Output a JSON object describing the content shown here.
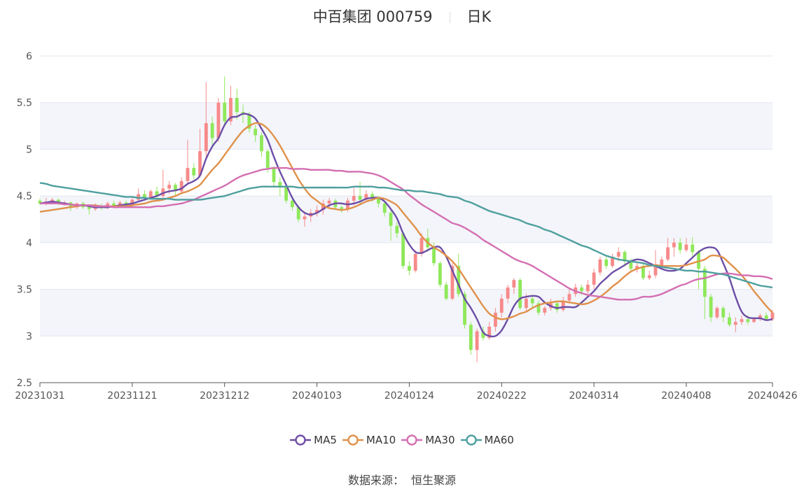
{
  "header": {
    "title": "中百集团 000759",
    "period": "日K"
  },
  "source": {
    "label": "数据来源：",
    "name": "恒生聚源"
  },
  "legend": [
    {
      "name": "MA5",
      "color": "#6d4ea6"
    },
    {
      "name": "MA10",
      "color": "#e0914a"
    },
    {
      "name": "MA30",
      "color": "#d46fb2"
    },
    {
      "name": "MA60",
      "color": "#4f9f9f"
    }
  ],
  "colors": {
    "up": "#f78a8a",
    "down": "#8fe85a",
    "band": "#f3f5fb",
    "grid": "#e3e6ee"
  },
  "chart_data": {
    "type": "candlestick",
    "ylim": [
      2.5,
      6
    ],
    "yticks": [
      "2.5",
      "3",
      "3.5",
      "4",
      "4.5",
      "5",
      "5.5",
      "6"
    ],
    "xticks": [
      {
        "label": "20231031",
        "index": 0
      },
      {
        "label": "20231121",
        "index": 15
      },
      {
        "label": "20231212",
        "index": 30
      },
      {
        "label": "20240103",
        "index": 45
      },
      {
        "label": "20240124",
        "index": 60
      },
      {
        "label": "20240222",
        "index": 75
      },
      {
        "label": "20240314",
        "index": 90
      },
      {
        "label": "20240408",
        "index": 105
      },
      {
        "label": "20240426",
        "index": 119
      }
    ],
    "candles": [
      [
        4.45,
        4.42,
        4.47,
        4.4
      ],
      [
        4.42,
        4.44,
        4.48,
        4.4
      ],
      [
        4.44,
        4.46,
        4.48,
        4.42
      ],
      [
        4.46,
        4.42,
        4.47,
        4.4
      ],
      [
        4.42,
        4.43,
        4.45,
        4.4
      ],
      [
        4.43,
        4.38,
        4.44,
        4.34
      ],
      [
        4.38,
        4.42,
        4.43,
        4.36
      ],
      [
        4.42,
        4.38,
        4.44,
        4.36
      ],
      [
        4.38,
        4.36,
        4.4,
        4.3
      ],
      [
        4.36,
        4.4,
        4.42,
        4.34
      ],
      [
        4.4,
        4.37,
        4.42,
        4.35
      ],
      [
        4.37,
        4.42,
        4.44,
        4.36
      ],
      [
        4.42,
        4.4,
        4.45,
        4.38
      ],
      [
        4.4,
        4.43,
        4.45,
        4.38
      ],
      [
        4.43,
        4.4,
        4.45,
        4.38
      ],
      [
        4.4,
        4.46,
        4.48,
        4.38
      ],
      [
        4.46,
        4.52,
        4.58,
        4.44
      ],
      [
        4.52,
        4.48,
        4.56,
        4.45
      ],
      [
        4.48,
        4.55,
        4.57,
        4.46
      ],
      [
        4.55,
        4.5,
        4.6,
        4.48
      ],
      [
        4.5,
        4.58,
        4.78,
        4.48
      ],
      [
        4.58,
        4.62,
        4.66,
        4.52
      ],
      [
        4.62,
        4.55,
        4.64,
        4.5
      ],
      [
        4.55,
        4.66,
        4.7,
        4.52
      ],
      [
        4.66,
        4.8,
        5.1,
        4.62
      ],
      [
        4.8,
        4.72,
        4.85,
        4.68
      ],
      [
        4.72,
        4.98,
        5.22,
        4.7
      ],
      [
        4.98,
        5.28,
        5.72,
        4.92
      ],
      [
        5.28,
        5.12,
        5.35,
        5.05
      ],
      [
        5.12,
        5.5,
        5.55,
        5.08
      ],
      [
        5.5,
        5.3,
        5.78,
        5.25
      ],
      [
        5.3,
        5.55,
        5.68,
        5.26
      ],
      [
        5.55,
        5.4,
        5.65,
        5.32
      ],
      [
        5.4,
        5.38,
        5.48,
        5.28
      ],
      [
        5.38,
        5.22,
        5.4,
        5.18
      ],
      [
        5.22,
        5.15,
        5.26,
        5.08
      ],
      [
        5.15,
        4.98,
        5.18,
        4.92
      ],
      [
        4.98,
        4.8,
        5.0,
        4.75
      ],
      [
        4.8,
        4.65,
        4.82,
        4.6
      ],
      [
        4.65,
        4.6,
        4.7,
        4.5
      ],
      [
        4.6,
        4.45,
        4.62,
        4.42
      ],
      [
        4.45,
        4.38,
        4.5,
        4.34
      ],
      [
        4.38,
        4.25,
        4.4,
        4.22
      ],
      [
        4.25,
        4.28,
        4.33,
        4.17
      ],
      [
        4.28,
        4.32,
        4.36,
        4.22
      ],
      [
        4.32,
        4.35,
        4.4,
        4.28
      ],
      [
        4.35,
        4.42,
        4.46,
        4.3
      ],
      [
        4.42,
        4.45,
        4.48,
        4.38
      ],
      [
        4.45,
        4.38,
        4.47,
        4.35
      ],
      [
        4.38,
        4.36,
        4.4,
        4.32
      ],
      [
        4.36,
        4.45,
        4.48,
        4.33
      ],
      [
        4.45,
        4.5,
        4.6,
        4.4
      ],
      [
        4.5,
        4.46,
        4.65,
        4.42
      ],
      [
        4.46,
        4.52,
        4.56,
        4.43
      ],
      [
        4.52,
        4.48,
        4.55,
        4.44
      ],
      [
        4.48,
        4.42,
        4.5,
        4.38
      ],
      [
        4.42,
        4.32,
        4.45,
        4.28
      ],
      [
        4.32,
        4.18,
        4.35,
        4.02
      ],
      [
        4.18,
        4.1,
        4.22,
        4.05
      ],
      [
        4.1,
        3.75,
        4.12,
        3.72
      ],
      [
        3.75,
        3.7,
        3.8,
        3.65
      ],
      [
        3.7,
        3.88,
        3.92,
        3.68
      ],
      [
        3.88,
        4.05,
        4.1,
        3.85
      ],
      [
        4.05,
        3.95,
        4.15,
        3.9
      ],
      [
        3.95,
        3.78,
        4.0,
        3.75
      ],
      [
        3.78,
        3.55,
        3.8,
        3.52
      ],
      [
        3.55,
        3.4,
        3.58,
        3.38
      ],
      [
        3.4,
        3.75,
        3.78,
        3.38
      ],
      [
        3.75,
        3.45,
        3.88,
        3.42
      ],
      [
        3.45,
        3.12,
        3.48,
        3.08
      ],
      [
        3.12,
        2.85,
        3.15,
        2.8
      ],
      [
        2.85,
        3.05,
        3.08,
        2.72
      ],
      [
        3.05,
        2.98,
        3.1,
        2.95
      ],
      [
        2.98,
        3.1,
        3.15,
        2.96
      ],
      [
        3.1,
        3.25,
        3.3,
        3.05
      ],
      [
        3.25,
        3.4,
        3.45,
        3.2
      ],
      [
        3.4,
        3.52,
        3.55,
        3.35
      ],
      [
        3.52,
        3.6,
        3.62,
        3.45
      ],
      [
        3.6,
        3.3,
        3.62,
        3.28
      ],
      [
        3.3,
        3.4,
        3.45,
        3.25
      ],
      [
        3.4,
        3.35,
        3.44,
        3.3
      ],
      [
        3.35,
        3.25,
        3.38,
        3.22
      ],
      [
        3.25,
        3.3,
        3.32,
        3.22
      ],
      [
        3.3,
        3.35,
        3.4,
        3.27
      ],
      [
        3.35,
        3.28,
        3.38,
        3.25
      ],
      [
        3.28,
        3.38,
        3.42,
        3.26
      ],
      [
        3.38,
        3.45,
        3.5,
        3.35
      ],
      [
        3.45,
        3.52,
        3.56,
        3.42
      ],
      [
        3.52,
        3.48,
        3.55,
        3.44
      ],
      [
        3.48,
        3.55,
        3.6,
        3.45
      ],
      [
        3.55,
        3.68,
        3.72,
        3.5
      ],
      [
        3.68,
        3.82,
        3.85,
        3.65
      ],
      [
        3.82,
        3.75,
        3.86,
        3.72
      ],
      [
        3.75,
        3.85,
        3.88,
        3.73
      ],
      [
        3.85,
        3.9,
        3.95,
        3.8
      ],
      [
        3.9,
        3.8,
        3.92,
        3.75
      ],
      [
        3.8,
        3.72,
        3.83,
        3.7
      ],
      [
        3.72,
        3.75,
        3.78,
        3.68
      ],
      [
        3.75,
        3.62,
        3.78,
        3.6
      ],
      [
        3.62,
        3.65,
        3.7,
        3.6
      ],
      [
        3.65,
        3.75,
        3.92,
        3.62
      ],
      [
        3.75,
        3.82,
        3.85,
        3.72
      ],
      [
        3.82,
        3.95,
        4.05,
        3.8
      ],
      [
        3.95,
        4.0,
        4.05,
        3.85
      ],
      [
        4.0,
        3.92,
        4.05,
        3.88
      ],
      [
        3.92,
        3.98,
        4.05,
        3.9
      ],
      [
        3.98,
        3.9,
        4.06,
        3.85
      ],
      [
        3.9,
        3.72,
        3.92,
        3.5
      ],
      [
        3.72,
        3.42,
        3.75,
        3.18
      ],
      [
        3.42,
        3.2,
        3.45,
        3.15
      ],
      [
        3.2,
        3.3,
        3.32,
        3.18
      ],
      [
        3.3,
        3.2,
        3.32,
        3.15
      ],
      [
        3.2,
        3.12,
        3.25,
        3.1
      ],
      [
        3.12,
        3.15,
        3.2,
        3.04
      ],
      [
        3.15,
        3.18,
        3.22,
        3.12
      ],
      [
        3.18,
        3.15,
        3.22,
        3.12
      ],
      [
        3.15,
        3.18,
        3.2,
        3.14
      ],
      [
        3.18,
        3.22,
        3.24,
        3.16
      ],
      [
        3.22,
        3.18,
        3.25,
        3.16
      ],
      [
        3.18,
        3.25,
        3.28,
        3.16
      ]
    ],
    "ma_lines": [
      {
        "name": "MA5",
        "values": [
          4.42,
          4.43,
          4.44,
          4.43,
          4.42,
          4.41,
          4.4,
          4.4,
          4.39,
          4.38,
          4.38,
          4.38,
          4.39,
          4.4,
          4.41,
          4.42,
          4.44,
          4.46,
          4.48,
          4.5,
          4.53,
          4.55,
          4.56,
          4.58,
          4.63,
          4.66,
          4.72,
          4.9,
          5.03,
          5.12,
          5.26,
          5.34,
          5.35,
          5.38,
          5.37,
          5.33,
          5.22,
          5.1,
          4.92,
          4.76,
          4.62,
          4.48,
          4.38,
          4.32,
          4.3,
          4.32,
          4.36,
          4.4,
          4.42,
          4.42,
          4.41,
          4.42,
          4.44,
          4.47,
          4.48,
          4.48,
          4.44,
          4.36,
          4.26,
          4.1,
          3.98,
          3.9,
          3.89,
          3.92,
          3.95,
          3.95,
          3.85,
          3.7,
          3.55,
          3.4,
          3.3,
          3.18,
          3.04,
          3.0,
          3.0,
          3.06,
          3.18,
          3.32,
          3.4,
          3.42,
          3.43,
          3.42,
          3.36,
          3.32,
          3.3,
          3.31,
          3.31,
          3.31,
          3.36,
          3.42,
          3.48,
          3.56,
          3.62,
          3.68,
          3.72,
          3.76,
          3.8,
          3.82,
          3.81,
          3.78,
          3.75,
          3.72,
          3.7,
          3.7,
          3.72,
          3.78,
          3.84,
          3.9,
          3.94,
          3.95,
          3.92,
          3.78,
          3.62,
          3.42,
          3.26,
          3.2,
          3.19,
          3.19,
          3.17,
          3.18
        ]
      },
      {
        "name": "MA10",
        "values": [
          4.33,
          4.34,
          4.35,
          4.36,
          4.37,
          4.38,
          4.39,
          4.4,
          4.4,
          4.4,
          4.39,
          4.39,
          4.39,
          4.39,
          4.39,
          4.4,
          4.41,
          4.42,
          4.44,
          4.45,
          4.46,
          4.48,
          4.5,
          4.53,
          4.55,
          4.58,
          4.62,
          4.7,
          4.78,
          4.85,
          4.94,
          5.03,
          5.12,
          5.2,
          5.25,
          5.28,
          5.27,
          5.22,
          5.14,
          5.04,
          4.92,
          4.8,
          4.68,
          4.58,
          4.5,
          4.45,
          4.4,
          4.37,
          4.36,
          4.35,
          4.36,
          4.38,
          4.41,
          4.44,
          4.46,
          4.48,
          4.47,
          4.44,
          4.4,
          4.32,
          4.24,
          4.16,
          4.07,
          4.0,
          3.95,
          3.91,
          3.86,
          3.8,
          3.72,
          3.62,
          3.52,
          3.42,
          3.32,
          3.24,
          3.2,
          3.18,
          3.19,
          3.21,
          3.24,
          3.26,
          3.3,
          3.33,
          3.35,
          3.36,
          3.37,
          3.37,
          3.36,
          3.35,
          3.34,
          3.35,
          3.38,
          3.42,
          3.47,
          3.53,
          3.58,
          3.64,
          3.69,
          3.72,
          3.74,
          3.75,
          3.76,
          3.75,
          3.75,
          3.75,
          3.75,
          3.76,
          3.78,
          3.8,
          3.82,
          3.86,
          3.86,
          3.84,
          3.78,
          3.72,
          3.65,
          3.57,
          3.48,
          3.4,
          3.32,
          3.25
        ]
      },
      {
        "name": "MA30",
        "values": [
          4.42,
          4.42,
          4.42,
          4.42,
          4.41,
          4.41,
          4.4,
          4.4,
          4.4,
          4.39,
          4.39,
          4.39,
          4.38,
          4.38,
          4.38,
          4.38,
          4.38,
          4.38,
          4.38,
          4.39,
          4.39,
          4.4,
          4.41,
          4.42,
          4.44,
          4.46,
          4.49,
          4.52,
          4.55,
          4.58,
          4.61,
          4.65,
          4.69,
          4.72,
          4.74,
          4.76,
          4.78,
          4.79,
          4.8,
          4.8,
          4.8,
          4.79,
          4.79,
          4.79,
          4.78,
          4.78,
          4.78,
          4.78,
          4.77,
          4.77,
          4.76,
          4.76,
          4.76,
          4.75,
          4.74,
          4.72,
          4.69,
          4.65,
          4.61,
          4.57,
          4.51,
          4.46,
          4.41,
          4.37,
          4.33,
          4.29,
          4.25,
          4.21,
          4.19,
          4.16,
          4.12,
          4.08,
          4.03,
          3.99,
          3.95,
          3.91,
          3.87,
          3.83,
          3.8,
          3.78,
          3.75,
          3.71,
          3.67,
          3.63,
          3.59,
          3.55,
          3.51,
          3.48,
          3.46,
          3.44,
          3.43,
          3.42,
          3.41,
          3.4,
          3.39,
          3.39,
          3.39,
          3.4,
          3.42,
          3.42,
          3.43,
          3.45,
          3.48,
          3.51,
          3.54,
          3.56,
          3.59,
          3.61,
          3.62,
          3.64,
          3.66,
          3.67,
          3.67,
          3.66,
          3.65,
          3.65,
          3.64,
          3.64,
          3.63,
          3.61
        ]
      },
      {
        "name": "MA60",
        "values": [
          4.64,
          4.63,
          4.61,
          4.6,
          4.59,
          4.58,
          4.57,
          4.56,
          4.55,
          4.54,
          4.53,
          4.52,
          4.51,
          4.5,
          4.49,
          4.49,
          4.48,
          4.48,
          4.47,
          4.47,
          4.47,
          4.47,
          4.46,
          4.46,
          4.46,
          4.46,
          4.46,
          4.47,
          4.48,
          4.49,
          4.5,
          4.52,
          4.54,
          4.56,
          4.58,
          4.59,
          4.6,
          4.6,
          4.6,
          4.6,
          4.6,
          4.6,
          4.59,
          4.59,
          4.59,
          4.59,
          4.59,
          4.59,
          4.59,
          4.59,
          4.59,
          4.6,
          4.6,
          4.6,
          4.6,
          4.59,
          4.59,
          4.58,
          4.57,
          4.56,
          4.56,
          4.55,
          4.55,
          4.54,
          4.53,
          4.52,
          4.5,
          4.49,
          4.48,
          4.45,
          4.43,
          4.4,
          4.37,
          4.34,
          4.32,
          4.3,
          4.28,
          4.26,
          4.24,
          4.21,
          4.19,
          4.17,
          4.14,
          4.12,
          4.09,
          4.06,
          4.03,
          4.0,
          3.97,
          3.95,
          3.92,
          3.89,
          3.86,
          3.84,
          3.82,
          3.81,
          3.8,
          3.79,
          3.78,
          3.76,
          3.75,
          3.74,
          3.73,
          3.72,
          3.71,
          3.7,
          3.7,
          3.69,
          3.69,
          3.68,
          3.67,
          3.66,
          3.64,
          3.62,
          3.6,
          3.58,
          3.56,
          3.54,
          3.53,
          3.52
        ]
      }
    ]
  }
}
